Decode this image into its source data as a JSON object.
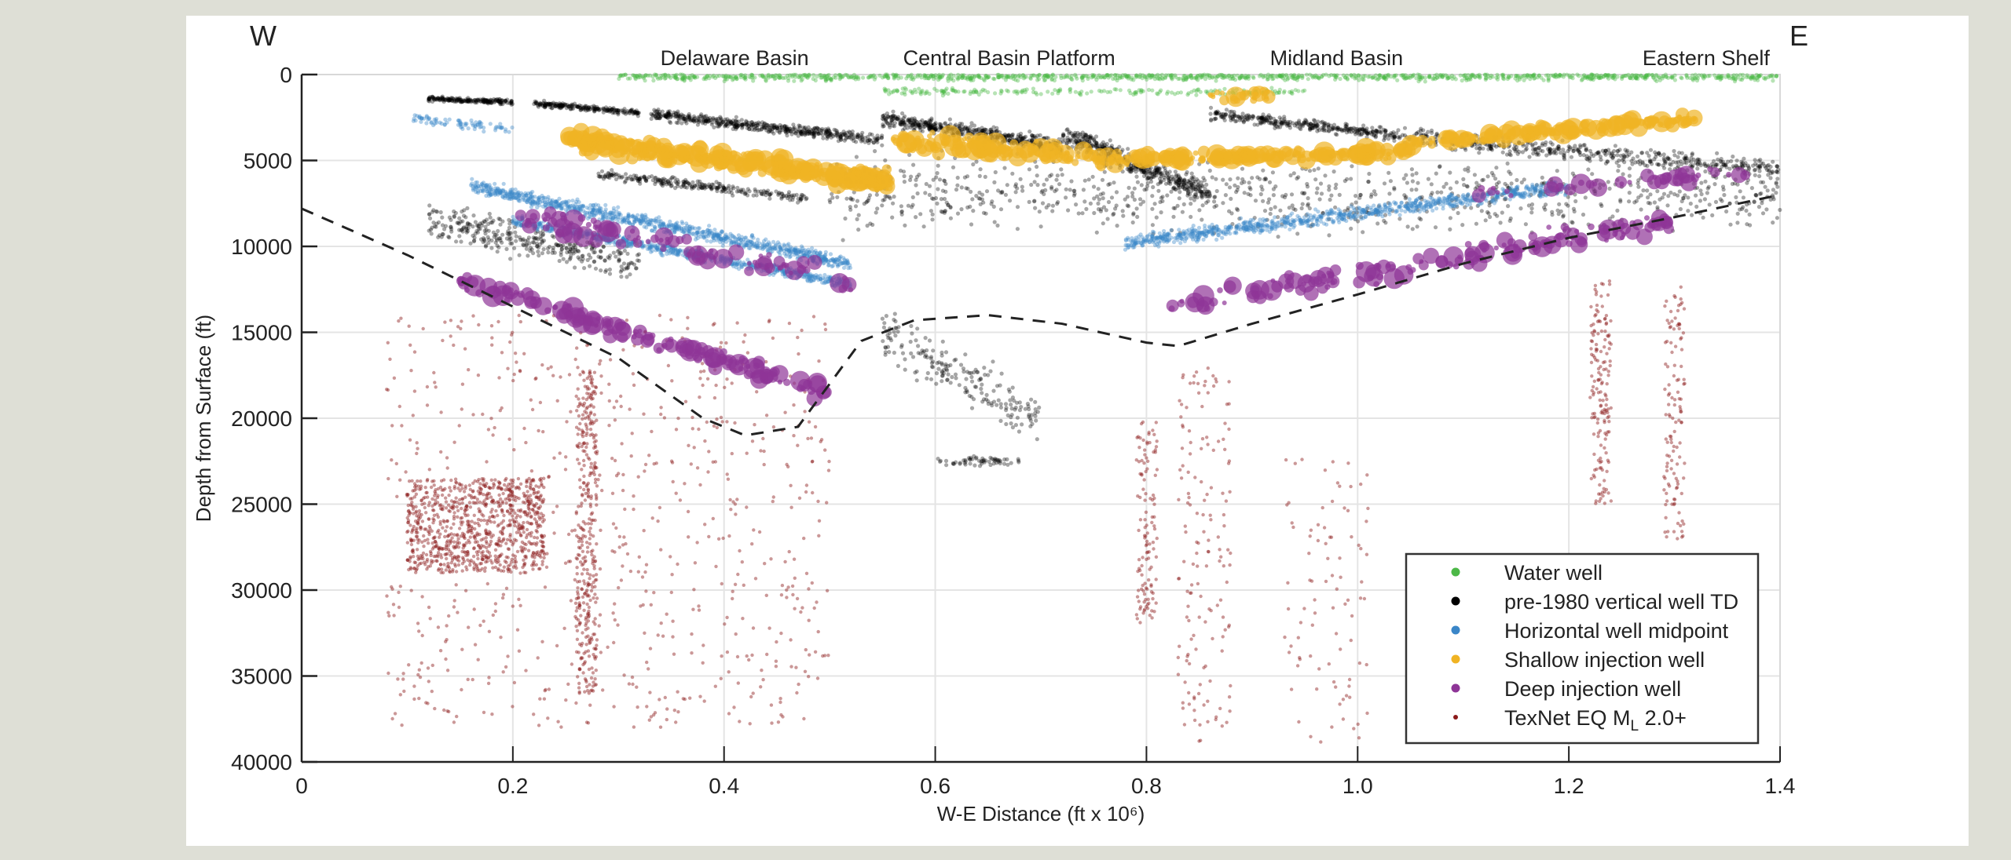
{
  "chart_data": {
    "type": "scatter",
    "xlabel": "W-E Distance (ft x 10⁶)",
    "ylabel": "Depth from Surface (ft)",
    "xlim": [
      0,
      1.4
    ],
    "ylim": [
      0,
      40000
    ],
    "y_reversed": true,
    "x_tick_labels": [
      "0",
      "0.2",
      "0.4",
      "0.6",
      "0.8",
      "1.0",
      "1.2",
      "1.4"
    ],
    "y_tick_labels": [
      "0",
      "5000",
      "10000",
      "15000",
      "20000",
      "25000",
      "30000",
      "35000",
      "40000"
    ],
    "grid": true,
    "legend_placement": "bottom-right",
    "direction_labels": {
      "west": "W",
      "east": "E"
    },
    "region_annotations": [
      {
        "label": "Delaware Basin",
        "x": 0.41
      },
      {
        "label": "Central Basin Platform",
        "x": 0.67
      },
      {
        "label": "Midland Basin",
        "x": 0.98
      },
      {
        "label": "Eastern Shelf",
        "x": 1.33
      }
    ],
    "dashed_line": {
      "x": [
        0,
        0.1,
        0.2,
        0.3,
        0.38,
        0.42,
        0.47,
        0.5,
        0.53,
        0.58,
        0.65,
        0.72,
        0.8,
        0.83,
        0.9,
        1.0,
        1.1,
        1.2,
        1.3,
        1.4
      ],
      "depth": [
        7800,
        10500,
        13500,
        16500,
        20000,
        21000,
        20500,
        18000,
        15500,
        14300,
        14000,
        14500,
        15600,
        15800,
        14500,
        12800,
        11000,
        9500,
        8300,
        7000
      ]
    },
    "series": [
      {
        "name": "TexNet EQ M",
        "name_subscript": "L",
        "name_suffix": " 2.0+",
        "color": "#8b1a1a",
        "marker": "small-dot",
        "clusters": [
          {
            "x": [
              0.08,
              0.5
            ],
            "depth": [
              14000,
              14000
            ],
            "depth_range": 24000,
            "points": 700
          },
          {
            "x": [
              0.1,
              0.23
            ],
            "depth": [
              23500,
              23500
            ],
            "depth_range": 5500,
            "points": 900
          },
          {
            "x": [
              0.26,
              0.28
            ],
            "depth": [
              17000,
              17000
            ],
            "depth_range": 19000,
            "points": 350
          },
          {
            "x": [
              0.79,
              0.81
            ],
            "depth": [
              20000,
              20000
            ],
            "depth_range": 12000,
            "points": 120
          },
          {
            "x": [
              0.83,
              0.88
            ],
            "depth": [
              17000,
              17000
            ],
            "depth_range": 22000,
            "points": 150
          },
          {
            "x": [
              0.93,
              1.01
            ],
            "depth": [
              22000,
              22000
            ],
            "depth_range": 17000,
            "points": 90
          },
          {
            "x": [
              1.22,
              1.24
            ],
            "depth": [
              12000,
              12000
            ],
            "depth_range": 13000,
            "points": 160
          },
          {
            "x": [
              1.29,
              1.31
            ],
            "depth": [
              12000,
              12000
            ],
            "depth_range": 22000,
            "points": 180
          }
        ]
      },
      {
        "name": "pre-1980 vertical well TD",
        "color": "#000000",
        "marker": "dot",
        "clusters": [
          {
            "x": [
              0.12,
              0.2
            ],
            "depth": [
              1400,
              1600
            ],
            "depth_range": 400,
            "points": 200
          },
          {
            "x": [
              0.22,
              0.32
            ],
            "depth": [
              1700,
              2200
            ],
            "depth_range": 500,
            "points": 220
          },
          {
            "x": [
              0.33,
              0.55
            ],
            "depth": [
              2300,
              3800
            ],
            "depth_range": 900,
            "points": 500
          },
          {
            "x": [
              0.55,
              0.72
            ],
            "depth": [
              2600,
              4200
            ],
            "depth_range": 1300,
            "points": 500
          },
          {
            "x": [
              0.72,
              0.86
            ],
            "depth": [
              3500,
              7000
            ],
            "depth_range": 2000,
            "points": 500
          },
          {
            "x": [
              0.86,
              1.02
            ],
            "depth": [
              2300,
              3400
            ],
            "depth_range": 900,
            "points": 300
          },
          {
            "x": [
              1.02,
              1.4
            ],
            "depth": [
              3500,
              5500
            ],
            "depth_range": 1500,
            "points": 500
          },
          {
            "x": [
              0.28,
              0.48
            ],
            "depth": [
              5800,
              7200
            ],
            "depth_range": 800,
            "points": 250
          },
          {
            "x": [
              0.12,
              0.32
            ],
            "depth": [
              8500,
              11000
            ],
            "depth_range": 3000,
            "points": 350
          },
          {
            "x": [
              0.5,
              1.4
            ],
            "depth": [
              7000,
              7000
            ],
            "depth_range": 6000,
            "points": 900
          },
          {
            "x": [
              0.55,
              0.7
            ],
            "depth": [
              15000,
              20000
            ],
            "depth_range": 4000,
            "points": 200
          },
          {
            "x": [
              0.6,
              0.68
            ],
            "depth": [
              22500,
              22500
            ],
            "depth_range": 800,
            "points": 60
          }
        ]
      },
      {
        "name": "Water well",
        "color": "#4cb847",
        "marker": "dot",
        "clusters": [
          {
            "x": [
              0.3,
              1.4
            ],
            "depth": [
              100,
              100
            ],
            "depth_range": 700,
            "points": 1400
          },
          {
            "x": [
              0.55,
              0.95
            ],
            "depth": [
              1000,
              1000
            ],
            "depth_range": 600,
            "points": 200
          }
        ]
      },
      {
        "name": "Horizontal well midpoint",
        "color": "#3a86c8",
        "marker": "dot",
        "clusters": [
          {
            "x": [
              0.16,
              0.52
            ],
            "depth": [
              6500,
              11000
            ],
            "depth_range": 1200,
            "points": 900
          },
          {
            "x": [
              0.2,
              0.52
            ],
            "depth": [
              8500,
              12200
            ],
            "depth_range": 900,
            "points": 700
          },
          {
            "x": [
              0.78,
              1.2
            ],
            "depth": [
              9800,
              6500
            ],
            "depth_range": 1200,
            "points": 900
          },
          {
            "x": [
              0.1,
              0.2
            ],
            "depth": [
              2500,
              3200
            ],
            "depth_range": 800,
            "points": 80
          }
        ]
      },
      {
        "name": "Shallow injection well",
        "color": "#f0b323",
        "marker": "large-dot",
        "clusters": [
          {
            "x": [
              0.25,
              0.56
            ],
            "depth": [
              3800,
              6200
            ],
            "depth_range": 1500,
            "points": 350
          },
          {
            "x": [
              0.56,
              0.75
            ],
            "depth": [
              3800,
              4800
            ],
            "depth_range": 1500,
            "points": 120
          },
          {
            "x": [
              0.75,
              1.05
            ],
            "depth": [
              5000,
              4500
            ],
            "depth_range": 900,
            "points": 200
          },
          {
            "x": [
              1.05,
              1.32
            ],
            "depth": [
              4000,
              2600
            ],
            "depth_range": 900,
            "points": 160
          },
          {
            "x": [
              0.86,
              0.92
            ],
            "depth": [
              1300,
              1300
            ],
            "depth_range": 900,
            "points": 25
          }
        ]
      },
      {
        "name": "Deep injection well",
        "color": "#8e3597",
        "marker": "large-dot",
        "clusters": [
          {
            "x": [
              0.15,
              0.5
            ],
            "depth": [
              12000,
              18500
            ],
            "depth_range": 1500,
            "points": 160
          },
          {
            "x": [
              0.2,
              0.52
            ],
            "depth": [
              8000,
              12000
            ],
            "depth_range": 2000,
            "points": 90
          },
          {
            "x": [
              0.82,
              1.3
            ],
            "depth": [
              13500,
              8500
            ],
            "depth_range": 1800,
            "points": 160
          },
          {
            "x": [
              1.1,
              1.4
            ],
            "depth": [
              7000,
              5500
            ],
            "depth_range": 1200,
            "points": 40
          }
        ]
      }
    ],
    "legend_order": [
      "Water well",
      "pre-1980 vertical well TD",
      "Horizontal well midpoint",
      "Shallow injection well",
      "Deep injection well",
      "TexNet EQ M"
    ]
  }
}
